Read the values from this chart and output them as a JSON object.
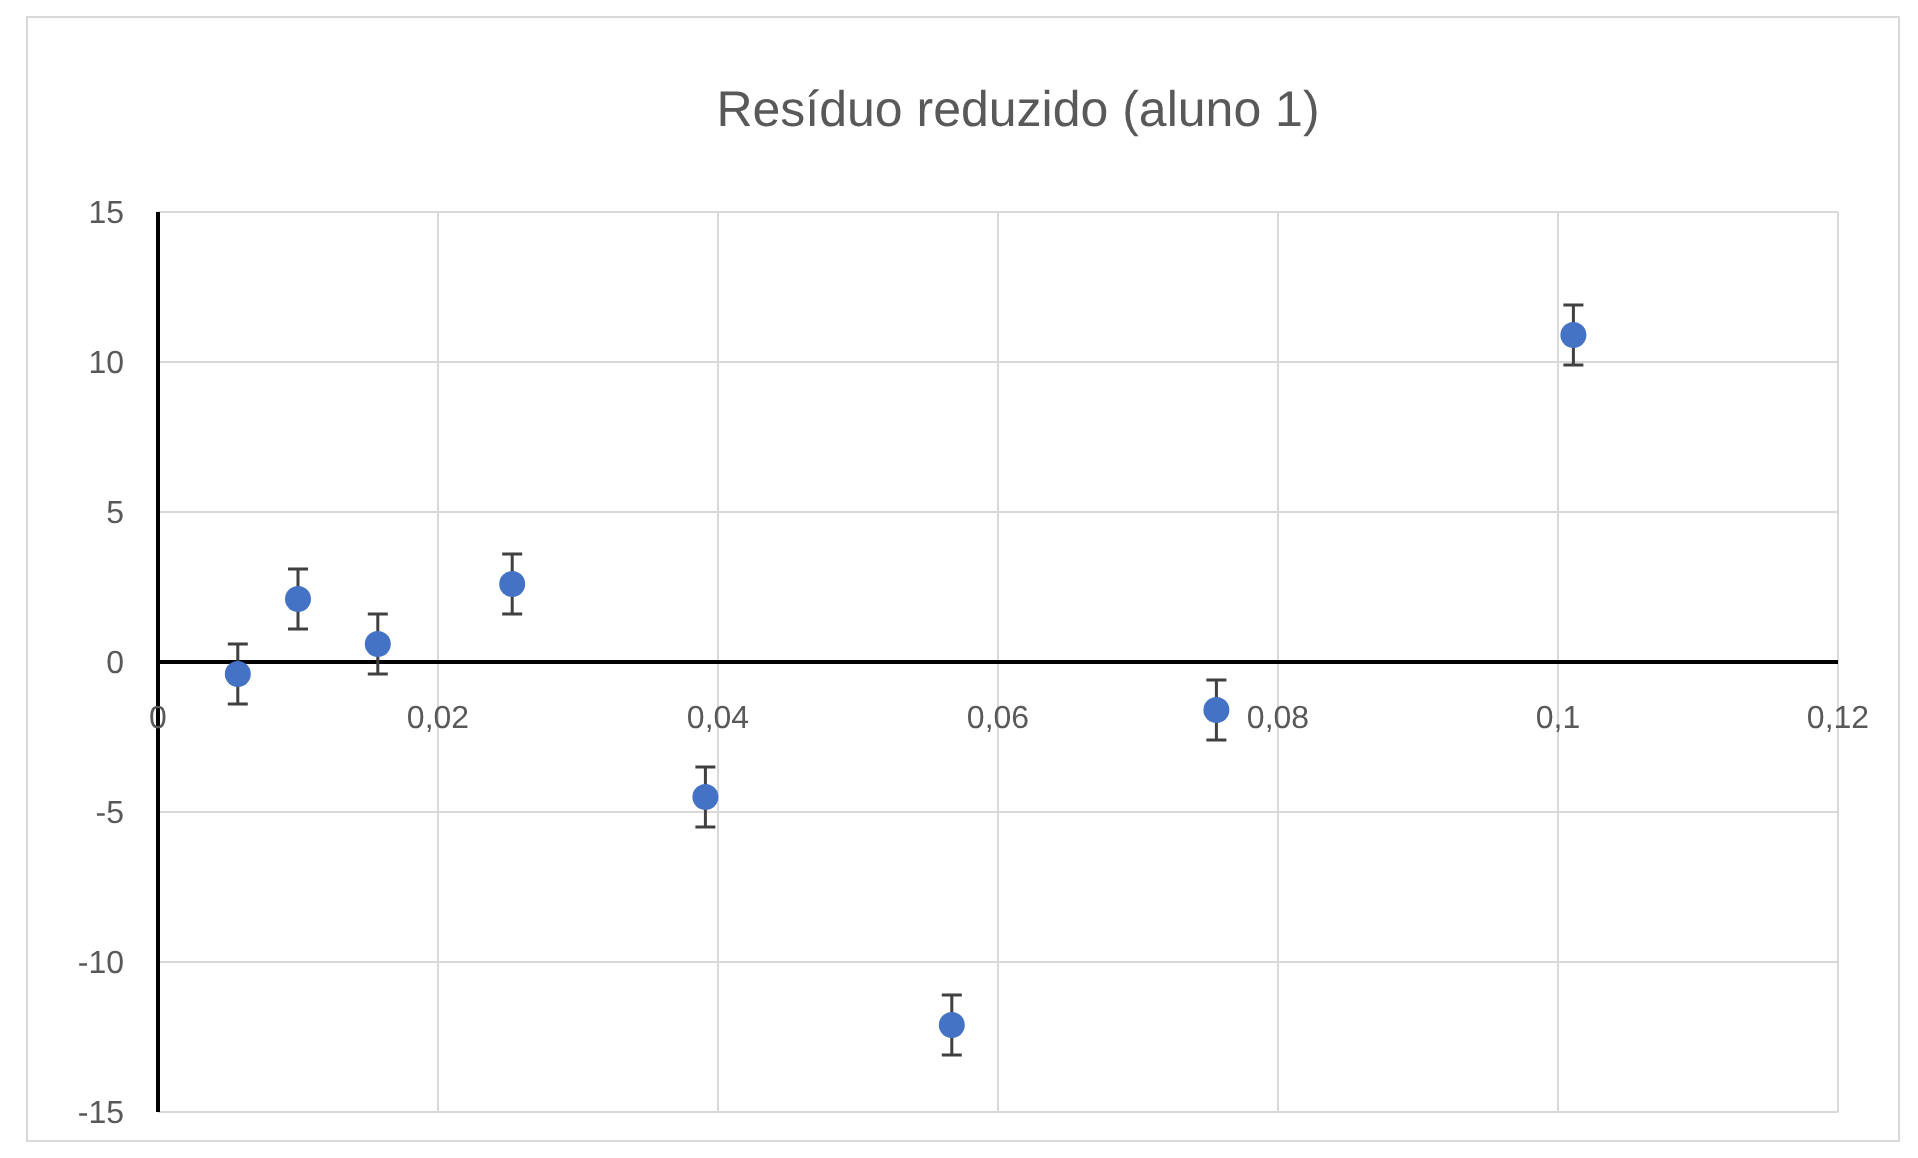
{
  "chart_data": {
    "type": "scatter",
    "title": "Resíduo reduzido (aluno 1)",
    "x": [
      0.0057,
      0.01,
      0.0157,
      0.0253,
      0.0391,
      0.0567,
      0.0756,
      0.1011
    ],
    "values": [
      -0.4,
      2.1,
      0.6,
      2.6,
      -4.5,
      -12.1,
      -1.6,
      10.9
    ],
    "errors": [
      1,
      1,
      1,
      1,
      1,
      1,
      1,
      1
    ],
    "color": "#4472c4",
    "marker": "circle",
    "xlim": [
      0,
      0.12
    ],
    "xticks": [
      0,
      {
        "value": 0.02,
        "label": "0,02"
      },
      {
        "value": 0.04,
        "label": "0,04"
      },
      {
        "value": 0.06,
        "label": "0,06"
      },
      {
        "value": 0.08,
        "label": "0,08"
      },
      {
        "value": 0.1,
        "label": "0,1"
      },
      {
        "value": 0.12,
        "label": "0,12"
      }
    ],
    "ylim": [
      -15,
      15
    ],
    "yticks": [
      -15,
      -10,
      -5,
      0,
      5,
      10,
      15
    ],
    "grid": true
  }
}
